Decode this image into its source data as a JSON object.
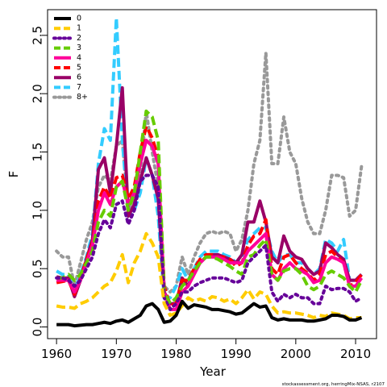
{
  "chart_data": {
    "type": "line",
    "xlabel": "Year",
    "ylabel": "F",
    "xlim": [
      1958.5,
      2013.5
    ],
    "ylim": [
      -0.1,
      2.72
    ],
    "x_ticks": [
      1960,
      1970,
      1980,
      1990,
      2000,
      2010
    ],
    "y_ticks": [
      0.0,
      0.5,
      1.0,
      1.5,
      2.0,
      2.5
    ],
    "x_tick_labels": [
      "1960",
      "1970",
      "1980",
      "1990",
      "2000",
      "2010"
    ],
    "y_tick_labels": [
      "0.0",
      "0.5",
      "1.0",
      "1.5",
      "2.0",
      "2.5"
    ],
    "legend_position": "top-left",
    "credit": "stockassessment.org, herringMix-NSAS, r2107",
    "x": [
      1960,
      1961,
      1962,
      1963,
      1964,
      1965,
      1966,
      1967,
      1968,
      1969,
      1970,
      1971,
      1972,
      1973,
      1974,
      1975,
      1976,
      1977,
      1978,
      1979,
      1980,
      1981,
      1982,
      1983,
      1984,
      1985,
      1986,
      1987,
      1988,
      1989,
      1990,
      1991,
      1992,
      1993,
      1994,
      1995,
      1996,
      1997,
      1998,
      1999,
      2000,
      2001,
      2002,
      2003,
      2004,
      2005,
      2006,
      2007,
      2008,
      2009,
      2010,
      2011
    ],
    "series": [
      {
        "name": "0",
        "color": "#000000",
        "dash": "solid",
        "values": [
          0.02,
          0.02,
          0.02,
          0.01,
          0.015,
          0.02,
          0.02,
          0.03,
          0.04,
          0.03,
          0.05,
          0.06,
          0.04,
          0.07,
          0.1,
          0.18,
          0.2,
          0.15,
          0.04,
          0.05,
          0.1,
          0.22,
          0.16,
          0.19,
          0.18,
          0.17,
          0.15,
          0.15,
          0.14,
          0.13,
          0.11,
          0.12,
          0.16,
          0.2,
          0.17,
          0.18,
          0.08,
          0.06,
          0.07,
          0.06,
          0.06,
          0.06,
          0.05,
          0.05,
          0.06,
          0.07,
          0.1,
          0.1,
          0.09,
          0.06,
          0.06,
          0.08
        ]
      },
      {
        "name": "1",
        "color": "#ffcc00",
        "dash": "dashed",
        "values": [
          0.18,
          0.17,
          0.17,
          0.16,
          0.2,
          0.22,
          0.25,
          0.3,
          0.35,
          0.38,
          0.48,
          0.62,
          0.38,
          0.55,
          0.65,
          0.8,
          0.72,
          0.6,
          0.2,
          0.1,
          0.12,
          0.18,
          0.25,
          0.22,
          0.24,
          0.22,
          0.26,
          0.25,
          0.22,
          0.24,
          0.2,
          0.25,
          0.32,
          0.24,
          0.3,
          0.28,
          0.18,
          0.12,
          0.13,
          0.12,
          0.12,
          0.11,
          0.1,
          0.08,
          0.1,
          0.09,
          0.12,
          0.11,
          0.1,
          0.07,
          0.08,
          0.08
        ]
      },
      {
        "name": "2",
        "color": "#660099",
        "dash": "dotted",
        "values": [
          0.42,
          0.42,
          0.4,
          0.35,
          0.4,
          0.5,
          0.6,
          0.8,
          0.92,
          0.85,
          1.05,
          1.08,
          0.88,
          1.0,
          1.25,
          1.3,
          1.3,
          1.2,
          0.25,
          0.15,
          0.2,
          0.3,
          0.3,
          0.35,
          0.38,
          0.4,
          0.42,
          0.42,
          0.42,
          0.4,
          0.38,
          0.4,
          0.55,
          0.6,
          0.65,
          0.7,
          0.3,
          0.22,
          0.28,
          0.25,
          0.28,
          0.25,
          0.25,
          0.2,
          0.2,
          0.35,
          0.32,
          0.33,
          0.33,
          0.3,
          0.22,
          0.25
        ]
      },
      {
        "name": "3",
        "color": "#66cc00",
        "dash": "dashed",
        "values": [
          0.42,
          0.42,
          0.45,
          0.4,
          0.45,
          0.55,
          0.65,
          0.9,
          1.0,
          0.95,
          1.2,
          1.25,
          1.0,
          1.15,
          1.5,
          1.85,
          1.8,
          1.6,
          0.3,
          0.2,
          0.25,
          0.35,
          0.4,
          0.48,
          0.55,
          0.6,
          0.6,
          0.58,
          0.55,
          0.52,
          0.48,
          0.45,
          0.6,
          0.62,
          0.7,
          0.75,
          0.45,
          0.4,
          0.48,
          0.5,
          0.5,
          0.45,
          0.35,
          0.32,
          0.35,
          0.45,
          0.48,
          0.45,
          0.42,
          0.35,
          0.3,
          0.4
        ]
      },
      {
        "name": "4",
        "color": "#ff0099",
        "dash": "solid",
        "values": [
          0.4,
          0.4,
          0.4,
          0.3,
          0.4,
          0.55,
          0.7,
          1.0,
          1.15,
          1.05,
          1.2,
          1.25,
          1.05,
          1.15,
          1.4,
          1.6,
          1.55,
          1.4,
          0.3,
          0.15,
          0.15,
          0.3,
          0.35,
          0.45,
          0.55,
          0.6,
          0.6,
          0.6,
          0.58,
          0.55,
          0.55,
          0.55,
          0.65,
          0.7,
          0.75,
          0.8,
          0.45,
          0.4,
          0.5,
          0.55,
          0.5,
          0.48,
          0.45,
          0.38,
          0.4,
          0.55,
          0.6,
          0.58,
          0.55,
          0.35,
          0.35,
          0.42
        ]
      },
      {
        "name": "5",
        "color": "#ff0000",
        "dash": "dashed",
        "values": [
          0.38,
          0.39,
          0.4,
          0.28,
          0.42,
          0.58,
          0.72,
          1.08,
          1.2,
          1.1,
          1.28,
          1.3,
          1.1,
          1.2,
          1.5,
          1.72,
          1.62,
          1.45,
          0.35,
          0.18,
          0.2,
          0.4,
          0.4,
          0.5,
          0.58,
          0.62,
          0.62,
          0.6,
          0.6,
          0.58,
          0.52,
          0.55,
          0.7,
          0.78,
          0.8,
          0.92,
          0.5,
          0.45,
          0.6,
          0.62,
          0.55,
          0.5,
          0.46,
          0.4,
          0.45,
          0.62,
          0.65,
          0.6,
          0.55,
          0.35,
          0.38,
          0.45
        ]
      },
      {
        "name": "6",
        "color": "#990066",
        "dash": "solid",
        "values": [
          0.43,
          0.42,
          0.42,
          0.26,
          0.4,
          0.58,
          0.75,
          1.35,
          1.45,
          1.15,
          1.55,
          2.05,
          0.95,
          1.05,
          1.25,
          1.45,
          1.3,
          1.1,
          0.3,
          0.2,
          0.2,
          0.42,
          0.35,
          0.48,
          0.55,
          0.6,
          0.62,
          0.62,
          0.6,
          0.58,
          0.55,
          0.62,
          0.9,
          0.9,
          1.08,
          0.9,
          0.6,
          0.55,
          0.78,
          0.65,
          0.6,
          0.58,
          0.5,
          0.45,
          0.48,
          0.72,
          0.68,
          0.62,
          0.58,
          0.4,
          0.4,
          0.45
        ]
      },
      {
        "name": "7",
        "color": "#33ccff",
        "dash": "dashed",
        "values": [
          0.48,
          0.45,
          0.45,
          0.3,
          0.45,
          0.6,
          0.8,
          1.4,
          1.7,
          1.6,
          2.65,
          1.6,
          0.95,
          1.0,
          1.15,
          1.45,
          1.3,
          0.95,
          0.25,
          0.25,
          0.35,
          0.5,
          0.4,
          0.5,
          0.6,
          0.65,
          0.65,
          0.65,
          0.62,
          0.6,
          0.55,
          0.6,
          0.75,
          0.8,
          0.85,
          0.85,
          0.65,
          0.55,
          0.62,
          0.62,
          0.55,
          0.55,
          0.5,
          0.45,
          0.5,
          0.75,
          0.72,
          0.65,
          0.75,
          0.4,
          0.4,
          0.45
        ]
      },
      {
        "name": "8+",
        "color": "#999999",
        "dash": "dotted",
        "values": [
          0.65,
          0.6,
          0.6,
          0.35,
          0.55,
          0.75,
          0.9,
          1.2,
          1.3,
          1.25,
          1.55,
          1.6,
          1.0,
          1.1,
          1.3,
          1.85,
          1.5,
          1.2,
          0.35,
          0.3,
          0.35,
          0.6,
          0.45,
          0.6,
          0.72,
          0.8,
          0.82,
          0.8,
          0.82,
          0.8,
          0.65,
          0.75,
          1.0,
          1.4,
          1.6,
          2.35,
          1.4,
          1.4,
          1.8,
          1.5,
          1.4,
          1.1,
          0.9,
          0.8,
          0.8,
          1.0,
          1.3,
          1.3,
          1.28,
          0.95,
          1.0,
          1.38
        ]
      }
    ]
  }
}
